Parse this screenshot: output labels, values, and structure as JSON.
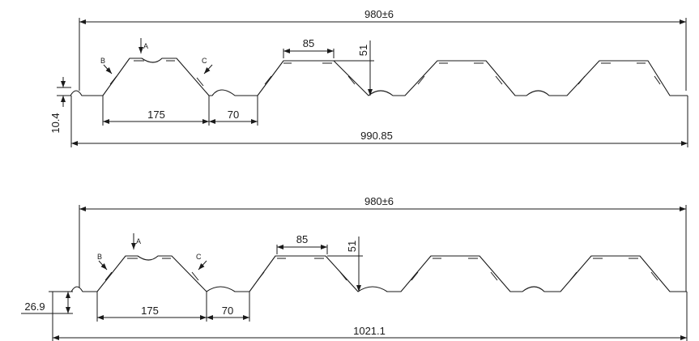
{
  "top": {
    "overall_width": "980±6",
    "rib_top": "85",
    "rib_height": "51",
    "pitch": "175",
    "valley": "70",
    "edge_height": "10.4",
    "total_width": "990.85",
    "label_a": "A",
    "label_b": "B",
    "label_c": "C"
  },
  "bottom": {
    "overall_width": "980±6",
    "rib_top": "85",
    "rib_height": "51",
    "pitch": "175",
    "valley": "70",
    "edge_height": "26.9",
    "total_width": "1021.1",
    "label_a": "A",
    "label_b": "B",
    "label_c": "C"
  }
}
